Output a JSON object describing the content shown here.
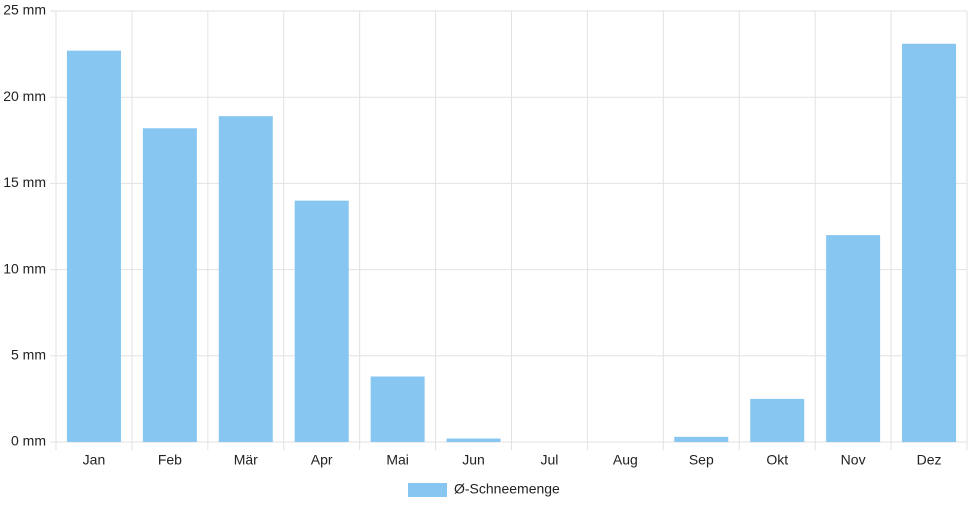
{
  "chart_data": {
    "type": "bar",
    "categories": [
      "Jan",
      "Feb",
      "Mär",
      "Apr",
      "Mai",
      "Jun",
      "Jul",
      "Aug",
      "Sep",
      "Okt",
      "Nov",
      "Dez"
    ],
    "series": [
      {
        "name": "Ø-Schneemenge",
        "color": "#88c6f2",
        "values": [
          22.7,
          18.2,
          18.9,
          14.0,
          3.8,
          0.2,
          0,
          0,
          0.3,
          2.5,
          12.0,
          23.1
        ]
      }
    ],
    "ylim": [
      0,
      25
    ],
    "yticks": [
      {
        "value": 0,
        "label": "0 mm"
      },
      {
        "value": 5,
        "label": "5 mm"
      },
      {
        "value": 10,
        "label": "10 mm"
      },
      {
        "value": 15,
        "label": "15 mm"
      },
      {
        "value": 20,
        "label": "20 mm"
      },
      {
        "value": 25,
        "label": "25 mm"
      }
    ],
    "grid": true,
    "legend": "bottom"
  }
}
